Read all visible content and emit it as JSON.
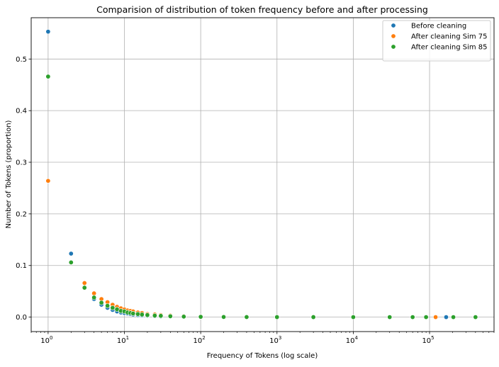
{
  "chart_data": {
    "type": "scatter",
    "title": "Comparision of distribution of token frequency before and after processing",
    "xlabel": "Frequency of Tokens (log scale)",
    "ylabel": "Number of Tokens (proportion)",
    "x_scale": "log",
    "xlim": [
      0.6,
      700000
    ],
    "ylim": [
      -0.028,
      0.58
    ],
    "grid": true,
    "legend_position": "top-right",
    "x_ticks": [
      {
        "base": "10",
        "exp": "0",
        "value": 1
      },
      {
        "base": "10",
        "exp": "1",
        "value": 10
      },
      {
        "base": "10",
        "exp": "2",
        "value": 100
      },
      {
        "base": "10",
        "exp": "3",
        "value": 1000
      },
      {
        "base": "10",
        "exp": "4",
        "value": 10000
      },
      {
        "base": "10",
        "exp": "5",
        "value": 100000
      }
    ],
    "y_ticks": [
      "0.0",
      "0.1",
      "0.2",
      "0.3",
      "0.4",
      "0.5"
    ],
    "series": [
      {
        "name": "Before cleaning",
        "color": "#1f77b4",
        "points": [
          [
            1,
            0.553
          ],
          [
            2,
            0.123
          ],
          [
            3,
            0.057
          ],
          [
            4,
            0.035
          ],
          [
            5,
            0.024
          ],
          [
            6,
            0.018
          ],
          [
            7,
            0.014
          ],
          [
            8,
            0.011
          ],
          [
            9,
            0.009
          ],
          [
            10,
            0.008
          ],
          [
            11,
            0.007
          ],
          [
            12,
            0.006
          ],
          [
            13,
            0.005
          ],
          [
            15,
            0.004
          ],
          [
            17,
            0.0035
          ],
          [
            20,
            0.003
          ],
          [
            25,
            0.002
          ],
          [
            30,
            0.0015
          ],
          [
            40,
            0.001
          ],
          [
            60,
            0.0007
          ],
          [
            100,
            0.0004
          ],
          [
            200,
            0.0002
          ],
          [
            400,
            0.0001
          ],
          [
            1000,
            5e-05
          ],
          [
            3000,
            2e-05
          ],
          [
            10000,
            1e-05
          ],
          [
            30000,
            5e-06
          ],
          [
            60000,
            3e-06
          ],
          [
            165000,
            1e-06
          ]
        ]
      },
      {
        "name": "After cleaning Sim 75",
        "color": "#ff7f0e",
        "points": [
          [
            1,
            0.264
          ],
          [
            2,
            0.106
          ],
          [
            3,
            0.066
          ],
          [
            4,
            0.046
          ],
          [
            5,
            0.035
          ],
          [
            6,
            0.029
          ],
          [
            7,
            0.024
          ],
          [
            8,
            0.02
          ],
          [
            9,
            0.017
          ],
          [
            10,
            0.015
          ],
          [
            11,
            0.013
          ],
          [
            12,
            0.012
          ],
          [
            13,
            0.011
          ],
          [
            15,
            0.009
          ],
          [
            17,
            0.008
          ],
          [
            20,
            0.006
          ],
          [
            25,
            0.005
          ],
          [
            30,
            0.004
          ],
          [
            40,
            0.003
          ],
          [
            60,
            0.002
          ],
          [
            100,
            0.001
          ],
          [
            200,
            0.0005
          ],
          [
            400,
            0.0003
          ],
          [
            1000,
            0.0001
          ],
          [
            3000,
            5e-05
          ],
          [
            10000,
            2e-05
          ],
          [
            30000,
            1e-05
          ],
          [
            60000,
            5e-06
          ],
          [
            120000,
            2e-06
          ],
          [
            400000,
            1e-06
          ]
        ]
      },
      {
        "name": "After cleaning Sim 85",
        "color": "#2ca02c",
        "points": [
          [
            1,
            0.466
          ],
          [
            2,
            0.106
          ],
          [
            3,
            0.057
          ],
          [
            4,
            0.038
          ],
          [
            5,
            0.028
          ],
          [
            6,
            0.022
          ],
          [
            7,
            0.018
          ],
          [
            8,
            0.015
          ],
          [
            9,
            0.012
          ],
          [
            10,
            0.011
          ],
          [
            11,
            0.009
          ],
          [
            12,
            0.008
          ],
          [
            13,
            0.007
          ],
          [
            15,
            0.006
          ],
          [
            17,
            0.005
          ],
          [
            20,
            0.004
          ],
          [
            25,
            0.003
          ],
          [
            30,
            0.0025
          ],
          [
            40,
            0.0017
          ],
          [
            60,
            0.001
          ],
          [
            100,
            0.0006
          ],
          [
            200,
            0.0003
          ],
          [
            400,
            0.00015
          ],
          [
            1000,
            6e-05
          ],
          [
            3000,
            2e-05
          ],
          [
            10000,
            1e-05
          ],
          [
            30000,
            5e-06
          ],
          [
            60000,
            3e-06
          ],
          [
            90000,
            2e-06
          ],
          [
            205000,
            1e-06
          ],
          [
            400000,
            1e-06
          ]
        ]
      }
    ]
  }
}
